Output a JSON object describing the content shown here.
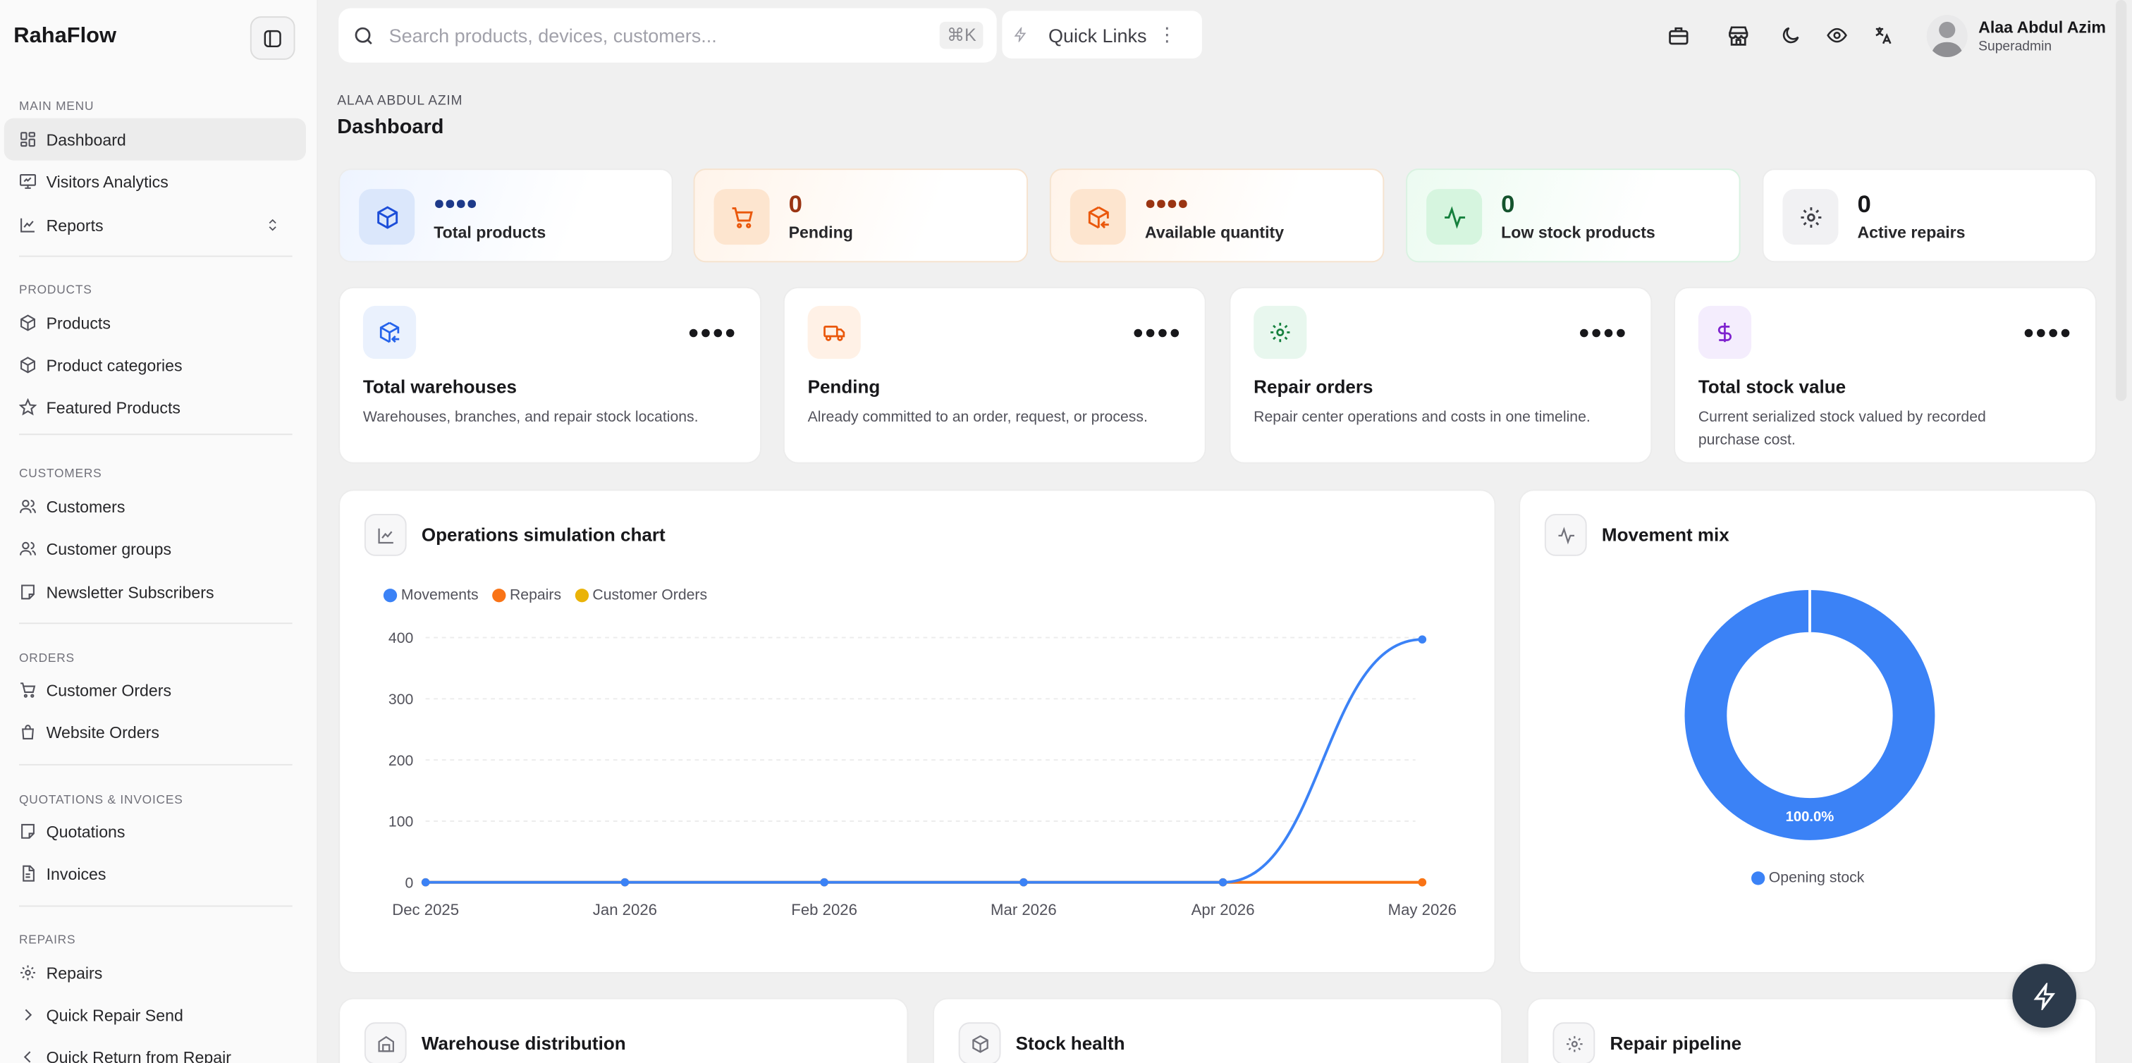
{
  "app": {
    "brand": "RahaFlow"
  },
  "sidebar": {
    "sections": [
      {
        "label": "Main menu",
        "items": [
          {
            "label": "Dashboard",
            "icon": "dashboard-icon"
          },
          {
            "label": "Visitors Analytics",
            "icon": "presentation-icon"
          },
          {
            "label": "Reports",
            "icon": "line-chart-icon"
          }
        ]
      },
      {
        "label": "Products",
        "items": [
          {
            "label": "Products",
            "icon": "box-icon"
          },
          {
            "label": "Product categories",
            "icon": "box-icon"
          },
          {
            "label": "Featured Products",
            "icon": "star-icon"
          }
        ]
      },
      {
        "label": "Customers",
        "items": [
          {
            "label": "Customers",
            "icon": "users-icon"
          },
          {
            "label": "Customer groups",
            "icon": "users-icon"
          },
          {
            "label": "Newsletter Subscribers",
            "icon": "sticky-note-icon"
          }
        ]
      },
      {
        "label": "Orders",
        "items": [
          {
            "label": "Customer Orders",
            "icon": "cart-icon"
          },
          {
            "label": "Website Orders",
            "icon": "shopping-bag-icon"
          }
        ]
      },
      {
        "label": "Quotations & Invoices",
        "items": [
          {
            "label": "Quotations",
            "icon": "sticky-note-icon"
          },
          {
            "label": "Invoices",
            "icon": "file-icon"
          }
        ]
      },
      {
        "label": "Repairs",
        "items": [
          {
            "label": "Repairs",
            "icon": "gear-icon"
          },
          {
            "label": "Quick Repair Send",
            "icon": "chevron-right-icon"
          },
          {
            "label": "Quick Return from Repair",
            "icon": "chevron-left-icon"
          }
        ]
      }
    ]
  },
  "topbar": {
    "search_placeholder": "Search products, devices, customers...",
    "search_shortcut": "⌘K",
    "quick_links": "Quick Links",
    "user_name": "Alaa Abdul Azim",
    "user_role": "Superadmin"
  },
  "page": {
    "eyebrow": "Alaa Abdul Azim",
    "title": "Dashboard"
  },
  "stats": [
    {
      "value": "",
      "label": "Total products",
      "masked": true,
      "color": "#1e3a8a"
    },
    {
      "value": "0",
      "label": "Pending",
      "masked": false,
      "color": "#9a3412"
    },
    {
      "value": "",
      "label": "Available quantity",
      "masked": true,
      "color": "#9a3412"
    },
    {
      "value": "0",
      "label": "Low stock products",
      "masked": false,
      "color": "#14532d"
    },
    {
      "value": "0",
      "label": "Active repairs",
      "masked": false,
      "color": "#18181b"
    }
  ],
  "summary_cards": [
    {
      "title": "Total warehouses",
      "desc": "Warehouses, branches, and repair stock locations."
    },
    {
      "title": "Pending",
      "desc": "Already committed to an order, request, or process."
    },
    {
      "title": "Repair orders",
      "desc": "Repair center operations and costs in one timeline."
    },
    {
      "title": "Total stock value",
      "desc": "Current serialized stock valued by recorded purchase cost."
    }
  ],
  "ops_chart": {
    "title": "Operations simulation chart"
  },
  "mix_chart": {
    "title": "Movement mix"
  },
  "bottom_panels": [
    "Warehouse distribution",
    "Stock health",
    "Repair pipeline"
  ],
  "chart_data": [
    {
      "type": "line",
      "title": "Operations simulation chart",
      "x": [
        "Dec 2025",
        "Jan 2026",
        "Feb 2026",
        "Mar 2026",
        "Apr 2026",
        "May 2026"
      ],
      "series": [
        {
          "name": "Movements",
          "values": [
            0,
            0,
            0,
            0,
            0,
            397
          ],
          "color": "#3b82f6"
        },
        {
          "name": "Repairs",
          "values": [
            0,
            0,
            0,
            0,
            0,
            0
          ],
          "color": "#f97316"
        },
        {
          "name": "Customer Orders",
          "values": [
            0,
            0,
            0,
            0,
            0,
            0
          ],
          "color": "#eab308"
        }
      ],
      "yticks": [
        0,
        100,
        200,
        300,
        400
      ],
      "ylim": [
        0,
        400
      ],
      "grid": true,
      "legend": "top-left"
    },
    {
      "type": "pie",
      "title": "Movement mix",
      "labels": [
        "Opening stock"
      ],
      "values": [
        100.0
      ],
      "display": [
        "100.0%"
      ],
      "colors": [
        "#3b82f6"
      ],
      "legend": "bottom"
    }
  ]
}
